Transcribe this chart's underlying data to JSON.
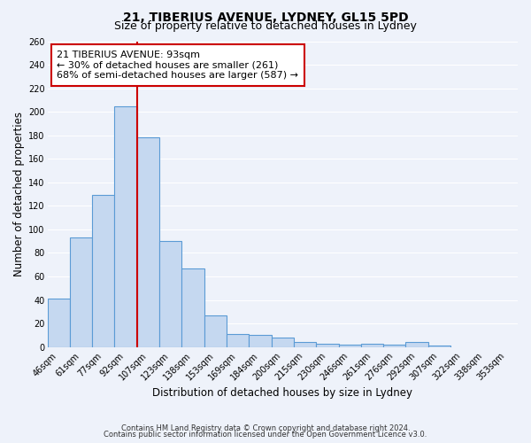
{
  "title": "21, TIBERIUS AVENUE, LYDNEY, GL15 5PD",
  "subtitle": "Size of property relative to detached houses in Lydney",
  "xlabel": "Distribution of detached houses by size in Lydney",
  "ylabel": "Number of detached properties",
  "bar_values": [
    41,
    93,
    129,
    205,
    178,
    90,
    67,
    27,
    11,
    10,
    8,
    4,
    3,
    2,
    3,
    2,
    4,
    1
  ],
  "x_tick_labels": [
    "46sqm",
    "61sqm",
    "77sqm",
    "92sqm",
    "107sqm",
    "123sqm",
    "138sqm",
    "153sqm",
    "169sqm",
    "184sqm",
    "200sqm",
    "215sqm",
    "230sqm",
    "246sqm",
    "261sqm",
    "276sqm",
    "292sqm",
    "307sqm",
    "322sqm",
    "338sqm",
    "353sqm"
  ],
  "bar_color": "#c5d8f0",
  "bar_edge_color": "#5b9bd5",
  "bar_edge_width": 0.8,
  "vline_color": "#cc0000",
  "ylim": [
    0,
    260
  ],
  "yticks": [
    0,
    20,
    40,
    60,
    80,
    100,
    120,
    140,
    160,
    180,
    200,
    220,
    240,
    260
  ],
  "annotation_title": "21 TIBERIUS AVENUE: 93sqm",
  "annotation_line1": "← 30% of detached houses are smaller (261)",
  "annotation_line2": "68% of semi-detached houses are larger (587) →",
  "annotation_box_color": "#ffffff",
  "annotation_box_edge": "#cc0000",
  "footer1": "Contains HM Land Registry data © Crown copyright and database right 2024.",
  "footer2": "Contains public sector information licensed under the Open Government Licence v3.0.",
  "background_color": "#eef2fa",
  "grid_color": "#ffffff",
  "title_fontsize": 10,
  "subtitle_fontsize": 9,
  "axis_label_fontsize": 8.5,
  "tick_fontsize": 7,
  "annotation_fontsize": 8,
  "footer_fontsize": 6
}
